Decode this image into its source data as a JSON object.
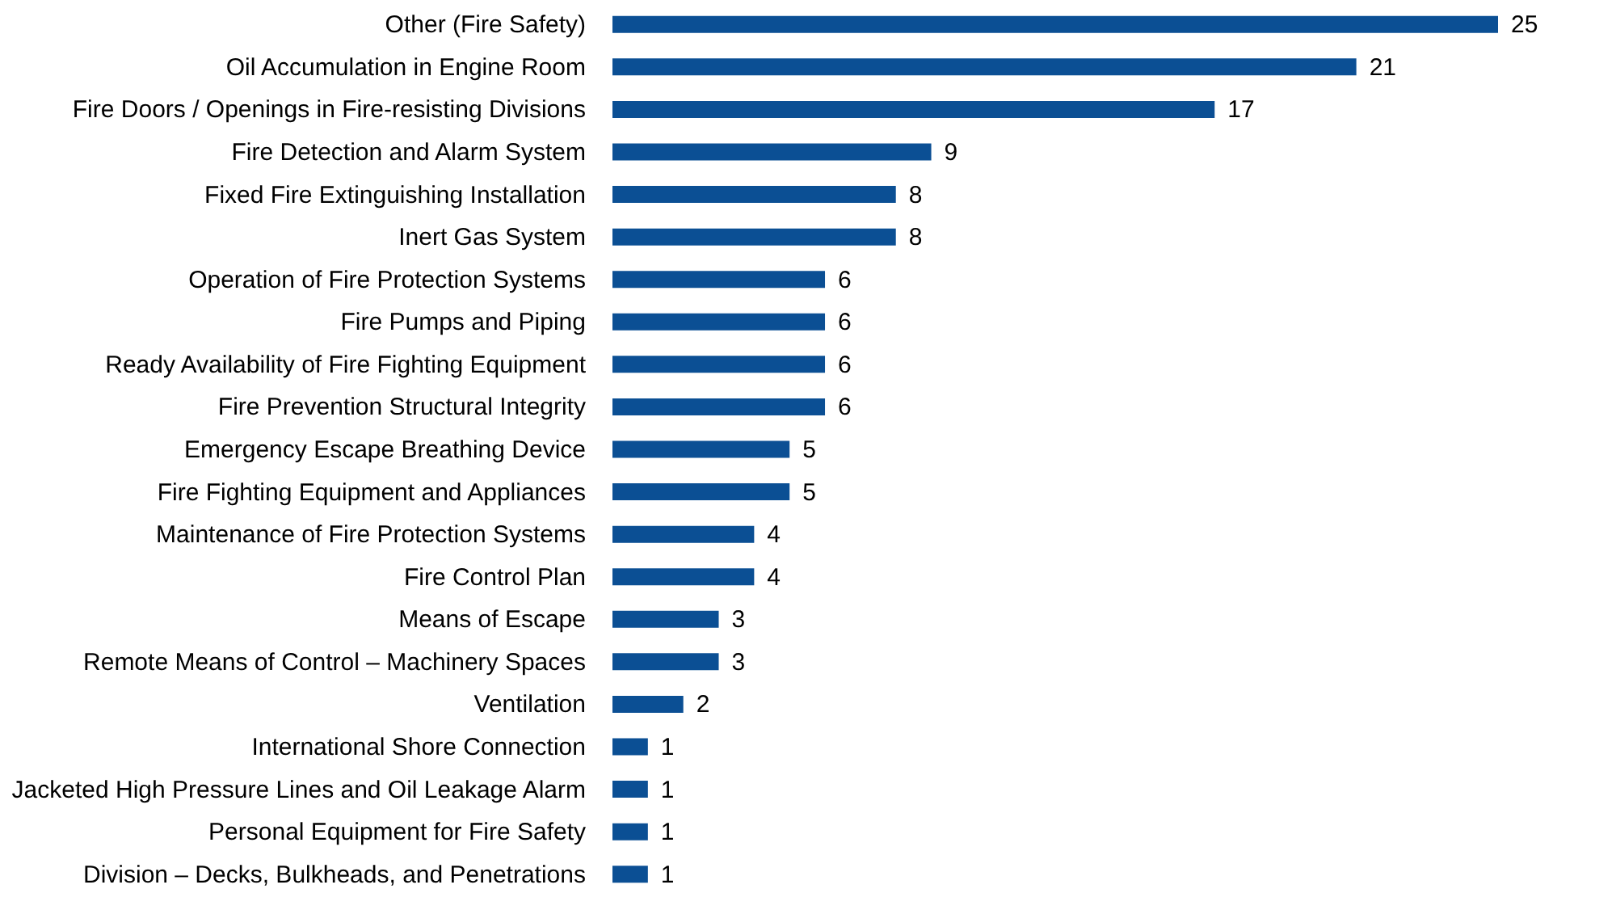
{
  "chart_data": {
    "type": "bar",
    "orientation": "horizontal",
    "data_labels": true,
    "categories": [
      "Other (Fire Safety)",
      "Oil Accumulation in Engine Room",
      "Fire Doors / Openings in Fire-resisting Divisions",
      "Fire Detection and Alarm System",
      "Fixed Fire Extinguishing Installation",
      "Inert Gas System",
      "Operation of Fire Protection Systems",
      "Fire Pumps and Piping",
      "Ready Availability of Fire Fighting Equipment",
      "Fire Prevention Structural Integrity",
      "Emergency Escape Breathing Device",
      "Fire Fighting Equipment and Appliances",
      "Maintenance of Fire Protection Systems",
      "Fire Control Plan",
      "Means of Escape",
      "Remote Means of Control – Machinery Spaces",
      "Ventilation",
      "International Shore Connection",
      "Jacketed High Pressure Lines and Oil Leakage Alarm",
      "Personal Equipment for Fire Safety",
      "Division – Decks, Bulkheads, and Penetrations"
    ],
    "values": [
      25,
      21,
      17,
      9,
      8,
      8,
      6,
      6,
      6,
      6,
      5,
      5,
      4,
      4,
      3,
      3,
      2,
      1,
      1,
      1,
      1
    ],
    "color": "#0b4f94"
  }
}
